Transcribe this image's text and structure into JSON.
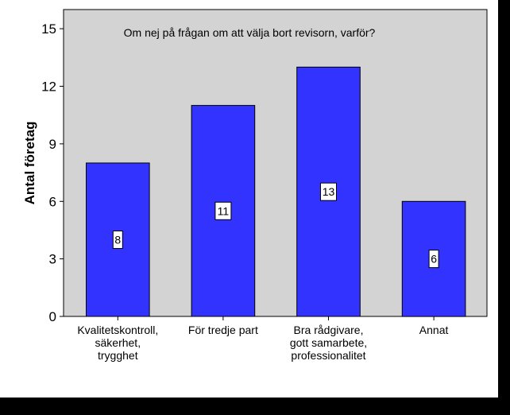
{
  "chart_data": {
    "type": "bar",
    "title": "Om nej på frågan om att välja bort revisorn, varför?",
    "xlabel": "",
    "ylabel": "Antal företag",
    "categories": [
      [
        "Kvalitetskontroll,",
        "säkerhet,",
        "trygghet"
      ],
      [
        "För tredje part"
      ],
      [
        "Bra rådgivare,",
        "gott samarbete,",
        "professionalitet"
      ],
      [
        "Annat"
      ]
    ],
    "values": [
      8,
      11,
      13,
      6
    ],
    "data_labels": [
      "8",
      "11",
      "13",
      "6"
    ],
    "ylim": [
      0,
      16
    ],
    "yticks": [
      0,
      3,
      6,
      9,
      12,
      15
    ],
    "grid": false,
    "legend": "none"
  },
  "colors": {
    "outer_background": "#ffffff",
    "plot_background": "#d3d3d3",
    "bar_fill": "#3333ff",
    "bar_stroke": "#000000",
    "frame_border": "#000000"
  }
}
